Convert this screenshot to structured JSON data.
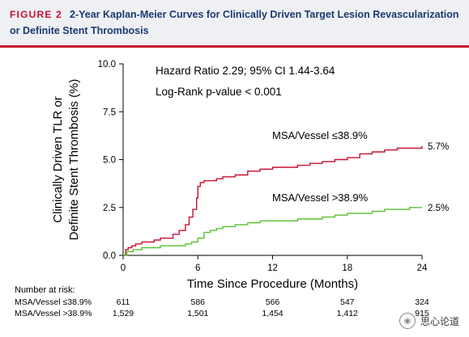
{
  "header": {
    "label": "FIGURE 2",
    "title": "2-Year Kaplan-Meier Curves for Clinically Driven Target Lesion Revascularization or Definite Stent Thrombosis"
  },
  "chart_data": {
    "type": "line",
    "title": "",
    "xlabel": "Time Since Procedure (Months)",
    "ylabel_lines": [
      "Clinically Driven TLR or",
      "Definite Stent Thrombosis (%)"
    ],
    "xlim": [
      0,
      24
    ],
    "ylim": [
      0,
      10
    ],
    "x_ticks": [
      0,
      6,
      12,
      18,
      24
    ],
    "y_ticks": [
      0.0,
      2.5,
      5.0,
      7.5,
      10.0
    ],
    "y_tick_labels": [
      "0.0",
      "2.5",
      "5.0",
      "7.5",
      "10.0"
    ],
    "grid": false,
    "annotations": [
      "Hazard Ratio 2.29; 95% CI 1.44-3.64",
      "Log-Rank p-value < 0.001"
    ],
    "series": [
      {
        "name": "MSA/Vessel ≤38.9%",
        "color": "#c8102e",
        "end_label": "5.7%",
        "x": [
          0,
          0.2,
          0.4,
          0.7,
          1.0,
          1.5,
          2.0,
          2.5,
          3.0,
          3.5,
          4.0,
          4.5,
          5.0,
          5.3,
          5.6,
          5.9,
          6.0,
          6.2,
          6.5,
          7.0,
          7.5,
          8.0,
          9.0,
          10.0,
          11.0,
          12.0,
          13.0,
          14.0,
          15.0,
          16.0,
          17.0,
          18.0,
          19.0,
          20.0,
          21.0,
          22.0,
          23.0,
          24.0
        ],
        "y": [
          0,
          0.3,
          0.4,
          0.5,
          0.6,
          0.7,
          0.7,
          0.8,
          0.9,
          0.9,
          1.1,
          1.3,
          1.6,
          2.0,
          2.4,
          3.0,
          3.6,
          3.8,
          3.9,
          3.9,
          4.0,
          4.1,
          4.2,
          4.4,
          4.5,
          4.6,
          4.6,
          4.7,
          4.8,
          4.9,
          5.0,
          5.1,
          5.3,
          5.4,
          5.5,
          5.6,
          5.6,
          5.7
        ]
      },
      {
        "name": "MSA/Vessel >38.9%",
        "color": "#55c42d",
        "end_label": "2.5%",
        "x": [
          0,
          0.3,
          0.8,
          1.5,
          2.0,
          3.0,
          4.0,
          5.0,
          5.5,
          6.0,
          6.5,
          7.0,
          7.5,
          8.0,
          9.0,
          10.0,
          11.0,
          12.0,
          13.0,
          14.0,
          15.0,
          16.0,
          17.0,
          18.0,
          19.0,
          20.0,
          21.0,
          22.0,
          23.0,
          24.0
        ],
        "y": [
          0,
          0.2,
          0.3,
          0.4,
          0.4,
          0.5,
          0.5,
          0.6,
          0.7,
          0.9,
          1.2,
          1.3,
          1.4,
          1.5,
          1.6,
          1.7,
          1.8,
          1.8,
          1.8,
          1.9,
          1.9,
          2.0,
          2.1,
          2.2,
          2.2,
          2.3,
          2.4,
          2.4,
          2.5,
          2.5
        ]
      }
    ]
  },
  "risk_table": {
    "title": "Number at risk:",
    "rows": [
      {
        "label": "MSA/Vessel ≤38.9%",
        "values": [
          "611",
          "586",
          "566",
          "547",
          "324"
        ]
      },
      {
        "label": "MSA/Vessel >38.9%",
        "values": [
          "1,529",
          "1,501",
          "1,454",
          "1,412",
          "915"
        ]
      }
    ]
  },
  "watermark": {
    "text": "思心论道"
  }
}
